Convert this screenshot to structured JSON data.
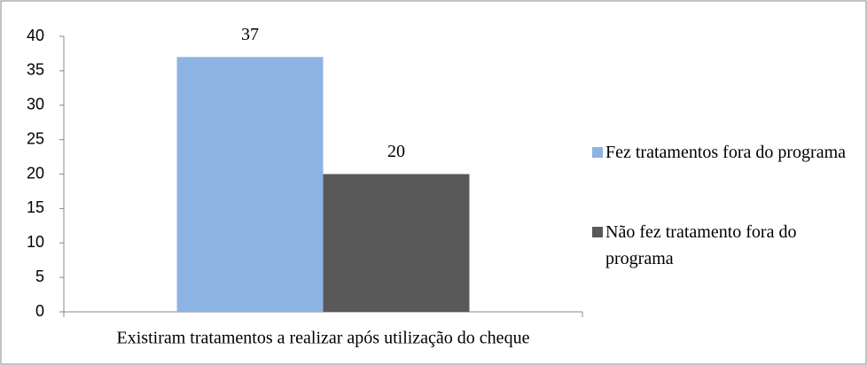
{
  "chart_data": {
    "type": "bar",
    "categories": [
      "Existiram tratamentos a realizar após utilização do cheque"
    ],
    "series": [
      {
        "name": "Fez tratamentos fora do programa",
        "color": "#8db3e2",
        "values": [
          37
        ]
      },
      {
        "name": "Não fez tratamento fora do programa",
        "color": "#595959",
        "values": [
          20
        ]
      }
    ],
    "ylim": [
      0,
      40
    ],
    "yticks": [
      0,
      5,
      10,
      15,
      20,
      25,
      30,
      35,
      40
    ],
    "legend": "right"
  }
}
